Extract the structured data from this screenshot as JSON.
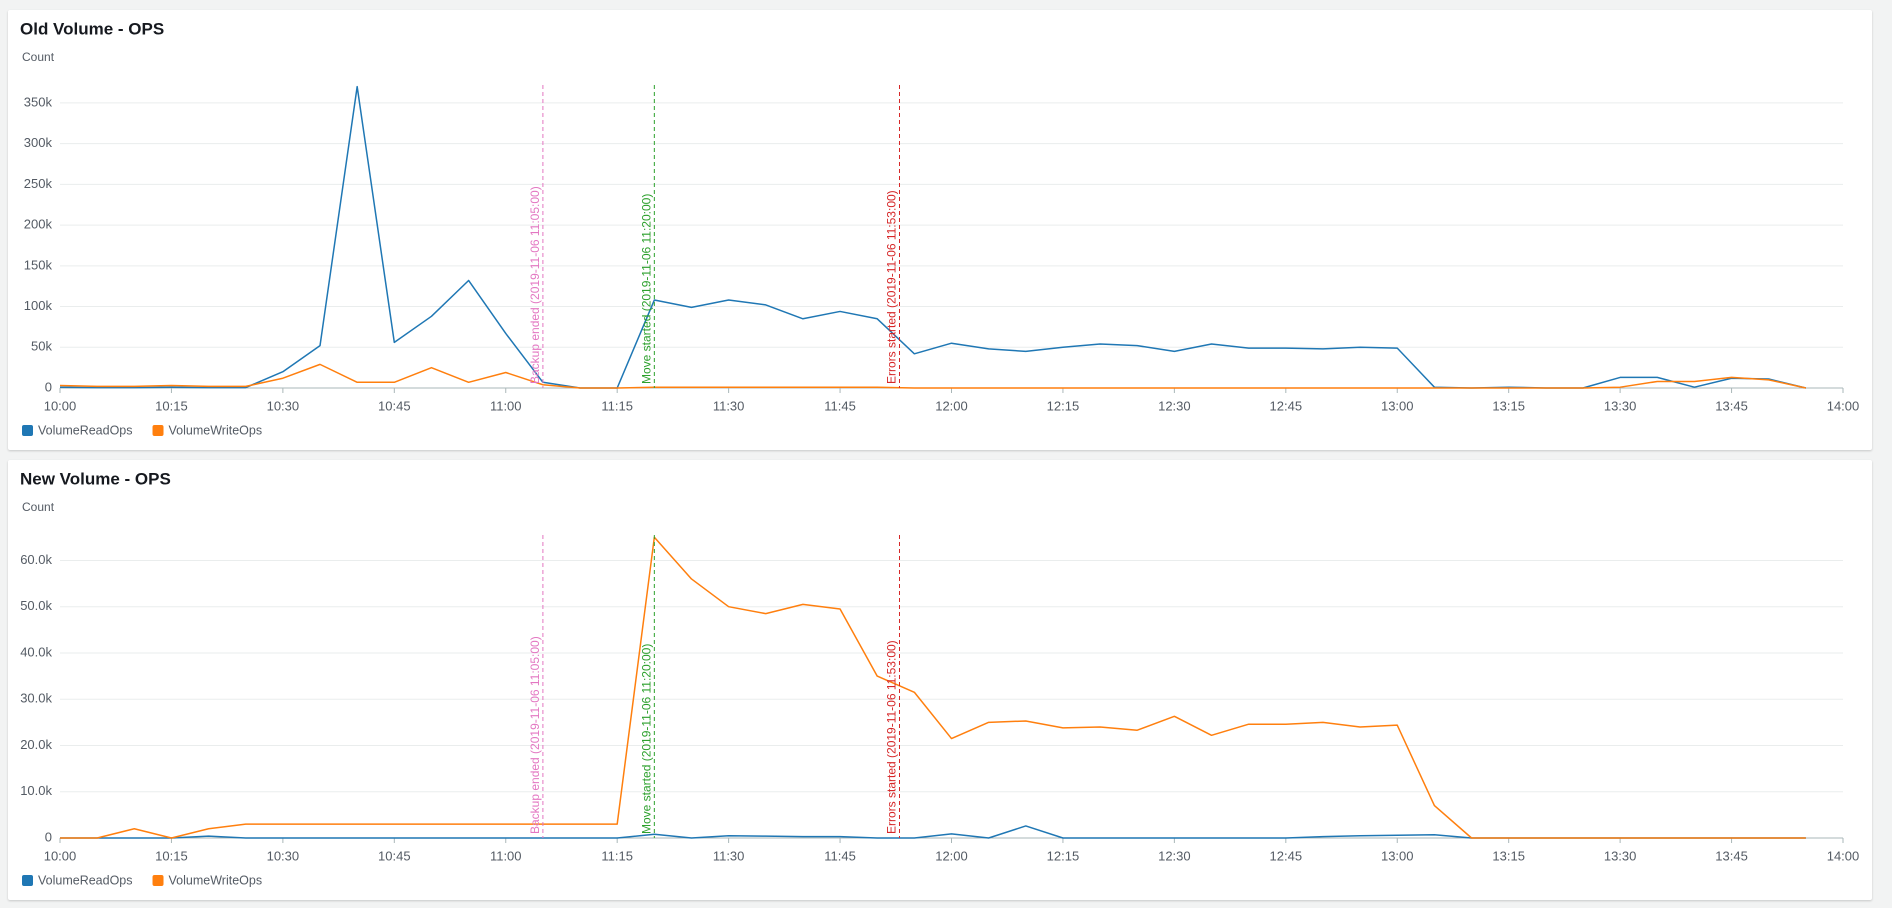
{
  "chart_data": [
    {
      "type": "line",
      "title": "Old Volume - OPS",
      "y_label": "Count",
      "x": [
        "10:00",
        "10:05",
        "10:10",
        "10:15",
        "10:20",
        "10:25",
        "10:30",
        "10:35",
        "10:40",
        "10:45",
        "10:50",
        "10:55",
        "11:00",
        "11:05",
        "11:10",
        "11:15",
        "11:20",
        "11:25",
        "11:30",
        "11:35",
        "11:40",
        "11:45",
        "11:50",
        "11:55",
        "12:00",
        "12:05",
        "12:10",
        "12:15",
        "12:20",
        "12:25",
        "12:30",
        "12:35",
        "12:40",
        "12:45",
        "12:50",
        "12:55",
        "13:00",
        "13:05",
        "13:10",
        "13:15",
        "13:20",
        "13:25",
        "13:30",
        "13:35",
        "13:40",
        "13:45",
        "13:50",
        "13:55"
      ],
      "series": [
        {
          "name": "VolumeReadOps",
          "color": "#1f77b4",
          "values": [
            1000,
            500,
            500,
            1000,
            500,
            500,
            20000,
            52000,
            370000,
            56000,
            88000,
            132000,
            67000,
            7000,
            0,
            0,
            108000,
            99000,
            108000,
            102000,
            85000,
            94000,
            85000,
            42000,
            55000,
            48000,
            45000,
            50000,
            54000,
            52000,
            45000,
            54000,
            49000,
            49000,
            48000,
            50000,
            49000,
            1000,
            0,
            1000,
            0,
            0,
            13000,
            13000,
            1000,
            12000,
            11000,
            0
          ]
        },
        {
          "name": "VolumeWriteOps",
          "color": "#ff7f0e",
          "values": [
            3000,
            2000,
            2000,
            3000,
            2000,
            2000,
            12000,
            29000,
            7000,
            7000,
            25000,
            7000,
            19000,
            4000,
            0,
            0,
            1000,
            1000,
            1000,
            1000,
            1000,
            1000,
            1000,
            0,
            0,
            0,
            0,
            0,
            0,
            0,
            0,
            0,
            0,
            0,
            0,
            0,
            0,
            0,
            0,
            0,
            0,
            0,
            1000,
            8000,
            8000,
            13000,
            10000,
            0
          ]
        }
      ],
      "xlim": [
        "10:00",
        "14:00"
      ],
      "xticks": [
        "10:00",
        "10:15",
        "10:30",
        "10:45",
        "11:00",
        "11:15",
        "11:30",
        "11:45",
        "12:00",
        "12:15",
        "12:30",
        "12:45",
        "13:00",
        "13:15",
        "13:30",
        "13:45",
        "14:00"
      ],
      "ylim": [
        0,
        372000
      ],
      "yticks": [
        0,
        {
          "value": 50000,
          "label": "50k"
        },
        {
          "value": 100000,
          "label": "100k"
        },
        {
          "value": 150000,
          "label": "150k"
        },
        {
          "value": 200000,
          "label": "200k"
        },
        {
          "value": 250000,
          "label": "250k"
        },
        {
          "value": 300000,
          "label": "300k"
        },
        {
          "value": 350000,
          "label": "350k"
        }
      ],
      "grid": true,
      "annotations": [
        {
          "x": "11:05",
          "label": "Backup ended (2019-11-06 11:05:00)",
          "color": "#e377c2"
        },
        {
          "x": "11:20",
          "label": "Move started (2019-11-06 11:20:00)",
          "color": "#2ca02c"
        },
        {
          "x": "11:53",
          "label": "Errors started (2019-11-06 11:53:00)",
          "color": "#d62728"
        }
      ]
    },
    {
      "type": "line",
      "title": "New Volume - OPS",
      "y_label": "Count",
      "x": [
        "10:00",
        "10:05",
        "10:10",
        "10:15",
        "10:20",
        "10:25",
        "10:30",
        "10:35",
        "10:40",
        "10:45",
        "10:50",
        "10:55",
        "11:00",
        "11:05",
        "11:10",
        "11:15",
        "11:20",
        "11:25",
        "11:30",
        "11:35",
        "11:40",
        "11:45",
        "11:50",
        "11:55",
        "12:00",
        "12:05",
        "12:10",
        "12:15",
        "12:20",
        "12:25",
        "12:30",
        "12:35",
        "12:40",
        "12:45",
        "12:50",
        "12:55",
        "13:00",
        "13:05",
        "13:10",
        "13:15",
        "13:20",
        "13:25",
        "13:30",
        "13:35",
        "13:40",
        "13:45",
        "13:50",
        "13:55"
      ],
      "series": [
        {
          "name": "VolumeReadOps",
          "color": "#1f77b4",
          "values": [
            0,
            0,
            0,
            0,
            400,
            0,
            0,
            0,
            0,
            0,
            0,
            0,
            0,
            0,
            0,
            0,
            800,
            0,
            500,
            400,
            300,
            300,
            0,
            0,
            900,
            0,
            2600,
            0,
            0,
            0,
            0,
            0,
            0,
            0,
            300,
            500,
            600,
            700,
            0,
            0,
            0,
            0,
            0,
            0,
            0,
            0,
            0,
            0
          ]
        },
        {
          "name": "VolumeWriteOps",
          "color": "#ff7f0e",
          "values": [
            0,
            0,
            2000,
            0,
            2000,
            3000,
            3000,
            3000,
            3000,
            3000,
            3000,
            3000,
            3000,
            3000,
            3000,
            3000,
            65000,
            56000,
            50000,
            48500,
            50500,
            49500,
            35000,
            31500,
            21500,
            25000,
            25300,
            23800,
            24000,
            23300,
            26300,
            22200,
            24600,
            24600,
            25000,
            24000,
            24400,
            7000,
            0,
            0,
            0,
            0,
            0,
            0,
            0,
            0,
            0,
            0
          ]
        }
      ],
      "xlim": [
        "10:00",
        "14:00"
      ],
      "xticks": [
        "10:00",
        "10:15",
        "10:30",
        "10:45",
        "11:00",
        "11:15",
        "11:30",
        "11:45",
        "12:00",
        "12:15",
        "12:30",
        "12:45",
        "13:00",
        "13:15",
        "13:30",
        "13:45",
        "14:00"
      ],
      "ylim": [
        0,
        65500
      ],
      "yticks": [
        0,
        {
          "value": 10000,
          "label": "10.0k"
        },
        {
          "value": 20000,
          "label": "20.0k"
        },
        {
          "value": 30000,
          "label": "30.0k"
        },
        {
          "value": 40000,
          "label": "40.0k"
        },
        {
          "value": 50000,
          "label": "50.0k"
        },
        {
          "value": 60000,
          "label": "60.0k"
        }
      ],
      "grid": true,
      "annotations": [
        {
          "x": "11:05",
          "label": "Backup ended (2019-11-06 11:05:00)",
          "color": "#e377c2"
        },
        {
          "x": "11:20",
          "label": "Move started (2019-11-06 11:20:00)",
          "color": "#2ca02c"
        },
        {
          "x": "11:53",
          "label": "Errors started (2019-11-06 11:53:00)",
          "color": "#d62728"
        }
      ]
    }
  ]
}
